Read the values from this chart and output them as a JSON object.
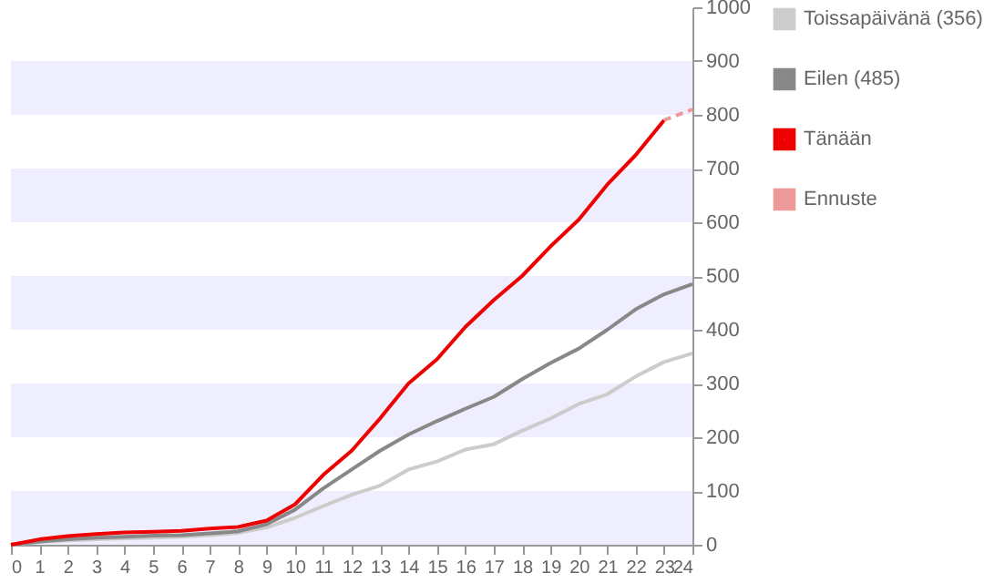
{
  "chart_data": {
    "type": "line",
    "x": [
      0,
      1,
      2,
      3,
      4,
      5,
      6,
      7,
      8,
      9,
      10,
      11,
      12,
      13,
      14,
      15,
      16,
      17,
      18,
      19,
      20,
      21,
      22,
      23,
      24
    ],
    "series": [
      {
        "name": "Toissapäivänä (356)",
        "color": "#cccccc",
        "values": [
          0,
          5,
          8,
          10,
          12,
          13,
          15,
          18,
          22,
          32,
          50,
          72,
          93,
          110,
          140,
          155,
          177,
          187,
          212,
          235,
          262,
          280,
          313,
          340,
          356
        ]
      },
      {
        "name": "Eilen (485)",
        "color": "#888888",
        "values": [
          0,
          6,
          10,
          13,
          15,
          17,
          18,
          21,
          25,
          38,
          65,
          105,
          140,
          175,
          205,
          230,
          253,
          275,
          308,
          338,
          365,
          400,
          438,
          466,
          485
        ]
      },
      {
        "name": "Tänään",
        "color": "#ee0000",
        "values": [
          0,
          10,
          16,
          20,
          23,
          24,
          26,
          30,
          33,
          45,
          75,
          130,
          175,
          235,
          300,
          345,
          405,
          455,
          500,
          555,
          605,
          670,
          725,
          790,
          null
        ]
      },
      {
        "name": "Ennuste",
        "color": "#ee9999",
        "line_style": "dashed",
        "x": [
          23,
          24
        ],
        "values": [
          790,
          810
        ]
      }
    ],
    "xlim": [
      0,
      24
    ],
    "xticks": [
      0,
      1,
      2,
      3,
      4,
      5,
      6,
      7,
      8,
      9,
      10,
      11,
      12,
      13,
      14,
      15,
      16,
      17,
      18,
      19,
      20,
      21,
      22,
      23,
      24
    ],
    "ylim": [
      0,
      1000
    ],
    "yticks": [
      0,
      100,
      200,
      300,
      400,
      500,
      600,
      700,
      800,
      900,
      1000
    ],
    "bands": [
      {
        "axis": "y",
        "from": 0,
        "to": 100,
        "color": "#eeeeff"
      },
      {
        "axis": "y",
        "from": 200,
        "to": 300,
        "color": "#eeeeff"
      },
      {
        "axis": "y",
        "from": 400,
        "to": 500,
        "color": "#eeeeff"
      },
      {
        "axis": "y",
        "from": 600,
        "to": 700,
        "color": "#eeeeff"
      },
      {
        "axis": "y",
        "from": 800,
        "to": 900,
        "color": "#eeeeff"
      }
    ],
    "grid": false,
    "legend": "right",
    "line_style": "solid"
  }
}
